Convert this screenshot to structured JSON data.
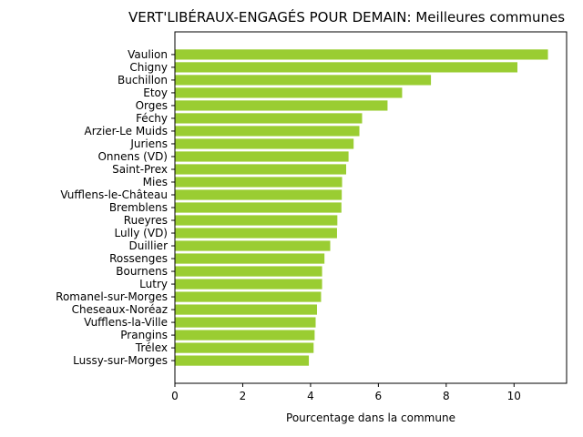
{
  "chart_data": {
    "type": "bar",
    "orientation": "horizontal",
    "title": "VERT'LIBÉRAUX-ENGAGÉS POUR DEMAIN: Meilleures communes",
    "xlabel": "Pourcentage dans la commune",
    "ylabel": "",
    "xlim": [
      0,
      11.55
    ],
    "xticks": [
      0,
      2,
      4,
      6,
      8,
      10
    ],
    "grid": false,
    "bar_color": "#9acd32",
    "categories": [
      "Vaulion",
      "Chigny",
      "Buchillon",
      "Etoy",
      "Orges",
      "Féchy",
      "Arzier-Le Muids",
      "Juriens",
      "Onnens (VD)",
      "Saint-Prex",
      "Mies",
      "Vufflens-le-Château",
      "Bremblens",
      "Rueyres",
      "Lully (VD)",
      "Duillier",
      "Rossenges",
      "Bournens",
      "Lutry",
      "Romanel-sur-Morges",
      "Cheseaux-Noréaz",
      "Vufflens-la-Ville",
      "Prangins",
      "Trélex",
      "Lussy-sur-Morges"
    ],
    "values": [
      11.0,
      10.1,
      7.55,
      6.7,
      6.27,
      5.52,
      5.44,
      5.27,
      5.12,
      5.05,
      4.93,
      4.92,
      4.91,
      4.79,
      4.78,
      4.58,
      4.41,
      4.34,
      4.34,
      4.31,
      4.19,
      4.15,
      4.12,
      4.09,
      3.95
    ]
  }
}
